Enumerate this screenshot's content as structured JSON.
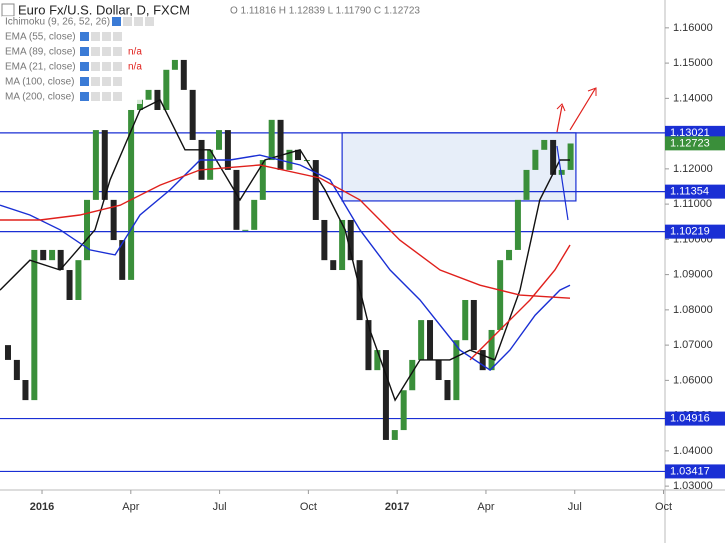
{
  "chart_data": {
    "type": "candlestick",
    "title": "Euro Fx/U.S. Dollar, D, FXCM",
    "ohlc_text": "O 1.11816 H 1.12839 L 1.11790 C 1.12723",
    "indicators": [
      "Ichimoku (9, 26, 52, 26)",
      "EMA (55, close)",
      "EMA (89, close)",
      "EMA (21, close)",
      "MA (100, close)",
      "MA (200, close)"
    ],
    "na_text": "n/a",
    "xlim": [
      -1.42,
      21.05
    ],
    "ylim": [
      1.0289,
      1.1679
    ],
    "xticks": [
      {
        "value": 0,
        "label": "2016"
      },
      {
        "value": 3,
        "label": "Apr"
      },
      {
        "value": 6,
        "label": "Jul"
      },
      {
        "value": 9,
        "label": "Oct"
      },
      {
        "value": 12,
        "label": "2017"
      },
      {
        "value": 15,
        "label": "Apr"
      },
      {
        "value": 18,
        "label": "Jul"
      },
      {
        "value": 21,
        "label": "Oct"
      }
    ],
    "yticks": [
      {
        "value": 1.03,
        "label": "1.03000"
      },
      {
        "value": 1.04,
        "label": "1.04000"
      },
      {
        "value": 1.05,
        "label": "1.05000"
      },
      {
        "value": 1.06,
        "label": "1.06000"
      },
      {
        "value": 1.07,
        "label": "1.07000"
      },
      {
        "value": 1.08,
        "label": "1.08000"
      },
      {
        "value": 1.09,
        "label": "1.09000"
      },
      {
        "value": 1.1,
        "label": "1.10000"
      },
      {
        "value": 1.11,
        "label": "1.11000"
      },
      {
        "value": 1.12,
        "label": "1.12000"
      },
      {
        "value": 1.13,
        "label": "1.13000"
      },
      {
        "value": 1.14,
        "label": "1.14000"
      },
      {
        "value": 1.15,
        "label": "1.15000"
      },
      {
        "value": 1.16,
        "label": "1.16000"
      }
    ],
    "up_color": "#3a8f3a",
    "down_color": "#222222",
    "x": [
      -1.15,
      -0.85,
      -0.56,
      -0.26,
      0.04,
      0.34,
      0.63,
      0.93,
      1.23,
      1.52,
      1.82,
      2.12,
      2.42,
      2.71,
      3.01,
      3.31,
      3.6,
      3.9,
      4.2,
      4.49,
      4.79,
      5.09,
      5.39,
      5.68,
      5.98,
      6.28,
      6.57,
      6.87,
      7.17,
      7.46,
      7.76,
      8.06,
      8.36,
      8.65,
      8.95,
      9.25,
      9.54,
      9.84,
      10.14,
      10.43,
      10.73,
      11.03,
      11.33,
      11.62,
      11.92,
      12.22,
      12.51,
      12.81,
      13.11,
      13.4,
      13.7,
      14.0,
      14.3,
      14.59,
      14.89,
      15.19,
      15.48,
      15.78,
      16.08,
      16.37,
      16.67,
      16.97,
      17.27,
      17.56,
      17.86
    ],
    "open": [
      1.07,
      1.0658,
      1.0601,
      1.0544,
      1.097,
      1.0941,
      1.097,
      1.0913,
      1.0828,
      1.0941,
      1.1112,
      1.131,
      1.1112,
      1.0998,
      1.0885,
      1.1367,
      1.1396,
      1.1424,
      1.1367,
      1.1481,
      1.1509,
      1.1424,
      1.1282,
      1.1169,
      1.1254,
      1.131,
      1.1197,
      1.1027,
      1.1027,
      1.1112,
      1.1225,
      1.1339,
      1.1197,
      1.1254,
      1.1225,
      1.1225,
      1.1055,
      1.0941,
      1.0913,
      1.1055,
      1.0941,
      1.0771,
      1.0629,
      1.0686,
      1.0431,
      1.0459,
      1.0572,
      1.0658,
      1.0771,
      1.0658,
      1.0601,
      1.0544,
      1.0714,
      1.0828,
      1.0686,
      1.0629,
      1.0743,
      1.0941,
      1.097,
      1.1112,
      1.1197,
      1.1254,
      1.1282,
      1.1183,
      1.1197
    ],
    "close": [
      1.0658,
      1.0601,
      1.0544,
      1.097,
      1.0941,
      1.097,
      1.0913,
      1.0828,
      1.0941,
      1.1112,
      1.131,
      1.1112,
      1.0998,
      1.0885,
      1.1367,
      1.1396,
      1.1424,
      1.1367,
      1.1481,
      1.1509,
      1.1424,
      1.1282,
      1.1169,
      1.1254,
      1.131,
      1.1197,
      1.1027,
      1.1027,
      1.1112,
      1.1225,
      1.1339,
      1.1197,
      1.1254,
      1.1225,
      1.1225,
      1.1055,
      1.0941,
      1.0913,
      1.1055,
      1.0941,
      1.0771,
      1.0629,
      1.0686,
      1.0431,
      1.0459,
      1.0572,
      1.0658,
      1.0771,
      1.0658,
      1.0601,
      1.0544,
      1.0714,
      1.0828,
      1.0686,
      1.0629,
      1.0743,
      1.0941,
      1.097,
      1.1112,
      1.1197,
      1.1254,
      1.1282,
      1.1183,
      1.1197,
      1.1272
    ],
    "series": [
      {
        "name": "EMA (55, close)",
        "color": "#111111",
        "x": [
          -1.42,
          -0.41,
          0.61,
          1.79,
          2.3,
          3.31,
          3.99,
          4.83,
          5.68,
          6.69,
          7.53,
          8.72,
          9.56,
          10.24,
          11.08,
          11.93,
          12.77,
          13.78,
          14.46,
          15.3,
          16.15,
          16.82,
          17.5,
          17.84
        ],
        "values": [
          1.0856,
          1.0941,
          1.0913,
          1.1027,
          1.1169,
          1.1367,
          1.1396,
          1.1254,
          1.1254,
          1.1112,
          1.1225,
          1.1254,
          1.114,
          1.1027,
          1.0743,
          1.0544,
          1.0658,
          1.0658,
          1.0686,
          1.0658,
          1.0856,
          1.1112,
          1.1225,
          1.1225
        ]
      },
      {
        "name": "MA (100, close)",
        "color": "#1a2fd4",
        "x": [
          -1.42,
          -0.41,
          0.61,
          1.62,
          2.47,
          3.31,
          4.32,
          5.34,
          6.35,
          7.36,
          8.72,
          9.73,
          10.74,
          11.76,
          12.77,
          14.12,
          15.14,
          15.81,
          16.66,
          17.5,
          17.84
        ],
        "values": [
          1.1097,
          1.1069,
          1.1027,
          1.097,
          1.0956,
          1.1069,
          1.114,
          1.1225,
          1.1225,
          1.1239,
          1.1211,
          1.1169,
          1.1027,
          1.0913,
          1.0828,
          1.0686,
          1.0629,
          1.0686,
          1.0785,
          1.0856,
          1.087
        ]
      },
      {
        "name": "MA (200, close)",
        "color": "#e0201c",
        "x": [
          -1.42,
          -0.07,
          1.28,
          2.64,
          3.99,
          5.34,
          7.36,
          9.39,
          10.74,
          12.09,
          13.45,
          14.8,
          16.15,
          17.84
        ],
        "values": [
          1.1055,
          1.1055,
          1.1069,
          1.1097,
          1.1154,
          1.1197,
          1.1211,
          1.1174,
          1.1112,
          1.0998,
          1.0913,
          1.087,
          1.0842,
          1.0833
        ]
      },
      {
        "name": "EMA (89, close)",
        "color": "#e0201c",
        "x": [
          14.46,
          15.47,
          16.49,
          17.33,
          17.84
        ],
        "values": [
          1.0658,
          1.0743,
          1.0828,
          1.0913,
          1.0984
        ]
      }
    ],
    "levels": [
      1.13021,
      1.11354,
      1.10219,
      1.04916,
      1.03417
    ],
    "level_color": "#1a2fd4",
    "last_price": 1.12723,
    "last_color": "#3a8f3a",
    "zone": {
      "x": [
        10.14,
        18.04
      ],
      "y": [
        1.1109,
        1.13021
      ]
    }
  }
}
